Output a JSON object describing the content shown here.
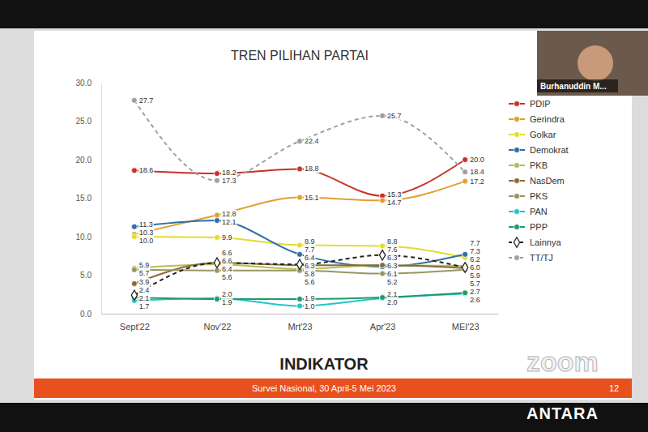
{
  "chart_data": {
    "type": "line",
    "title": "TREN PILIHAN PARTAI",
    "categories": [
      "Sept'22",
      "Nov'22",
      "Mrt'23",
      "Apr'23",
      "MEI'23"
    ],
    "ylim": [
      0,
      30
    ],
    "yticks": [
      {
        "value": 0,
        "label": "0.0"
      },
      {
        "value": 5,
        "label": "5.0"
      },
      {
        "value": 10,
        "label": "10.0"
      },
      {
        "value": 15,
        "label": "15.0"
      },
      {
        "value": 20,
        "label": "20.0"
      },
      {
        "value": 25,
        "label": "25.0"
      },
      {
        "value": 30,
        "label": "30.0"
      }
    ],
    "grid": false,
    "legend": "right",
    "data_labels": true,
    "series": [
      {
        "name": "PDIP",
        "color": "#c8312a",
        "marker": "circle",
        "line_style": "solid",
        "values": [
          18.6,
          18.2,
          18.8,
          15.3,
          20.0
        ],
        "value_labels": [
          "18.6",
          "18.2",
          "18.8",
          "15.3",
          "20.0"
        ]
      },
      {
        "name": "Gerindra",
        "color": "#e0a030",
        "marker": "circle",
        "line_style": "solid",
        "values": [
          10.3,
          12.8,
          15.1,
          14.7,
          17.2
        ],
        "value_labels": [
          "10.3",
          "12.8",
          "15.1",
          "14.7",
          "17.2"
        ]
      },
      {
        "name": "Golkar",
        "color": "#e3dc2c",
        "marker": "circle",
        "line_style": "solid",
        "values": [
          10.0,
          9.9,
          8.9,
          8.8,
          7.3
        ],
        "value_labels": [
          "10.0",
          "9.9",
          "8.9",
          "8.8",
          "7.3"
        ]
      },
      {
        "name": "Demokrat",
        "color": "#2e6fa8",
        "marker": "circle",
        "line_style": "solid",
        "values": [
          11.3,
          12.1,
          7.7,
          6.1,
          7.7
        ],
        "value_labels": [
          "11.3",
          "12.1",
          "7.7",
          "6.1",
          "7.7"
        ]
      },
      {
        "name": "PKB",
        "color": "#b0bf55",
        "marker": "circle",
        "line_style": "solid",
        "values": [
          5.9,
          6.4,
          5.8,
          6.3,
          6.2
        ],
        "value_labels": [
          "5.9",
          "6.4",
          "5.8",
          "6.3",
          "6.2"
        ]
      },
      {
        "name": "NasDem",
        "color": "#8a6a3a",
        "marker": "circle",
        "line_style": "solid",
        "values": [
          3.9,
          6.6,
          6.3,
          6.3,
          5.9
        ],
        "value_labels": [
          "3.9",
          "6.6",
          "6.3",
          "6.3",
          "5.9"
        ]
      },
      {
        "name": "PKS",
        "color": "#9a9560",
        "marker": "circle",
        "line_style": "solid",
        "values": [
          5.7,
          5.6,
          5.6,
          5.2,
          5.7
        ],
        "value_labels": [
          "5.7",
          "5.6",
          "5.6",
          "5.2",
          "5.7"
        ]
      },
      {
        "name": "PAN",
        "color": "#1fc7c7",
        "marker": "circle",
        "line_style": "solid",
        "values": [
          1.7,
          2.0,
          1.0,
          2.0,
          2.6
        ],
        "value_labels": [
          "1.7",
          "2.0",
          "1.0",
          "2.0",
          "2.6"
        ]
      },
      {
        "name": "PPP",
        "color": "#1f9a6e",
        "marker": "circle",
        "line_style": "solid",
        "values": [
          2.1,
          1.9,
          1.9,
          2.1,
          2.7
        ],
        "value_labels": [
          "2.1",
          "1.9",
          "1.9",
          "2.1",
          "2.7"
        ]
      },
      {
        "name": "Lainnya",
        "color": "#222222",
        "marker": "diamond",
        "line_style": "dashed",
        "values": [
          2.4,
          6.6,
          6.4,
          7.6,
          6.0
        ],
        "value_labels": [
          "2.4",
          "6.6",
          "6.4",
          "7.6",
          "6.0"
        ]
      },
      {
        "name": "TT/TJ",
        "color": "#a0a0a0",
        "marker": "circle",
        "line_style": "dashed",
        "values": [
          27.7,
          17.3,
          22.4,
          25.7,
          18.4
        ],
        "value_labels": [
          "27.7",
          "17.3",
          "22.4",
          "25.7",
          "18.4"
        ]
      }
    ]
  },
  "slide": {
    "logo": "INDIKATOR",
    "footer": "Survei Nasional, 30 April-5 Mei 2023",
    "page": "12",
    "speaker": "Burhanuddin M...",
    "watermarks": [
      "zoom",
      "ANTARA"
    ]
  }
}
